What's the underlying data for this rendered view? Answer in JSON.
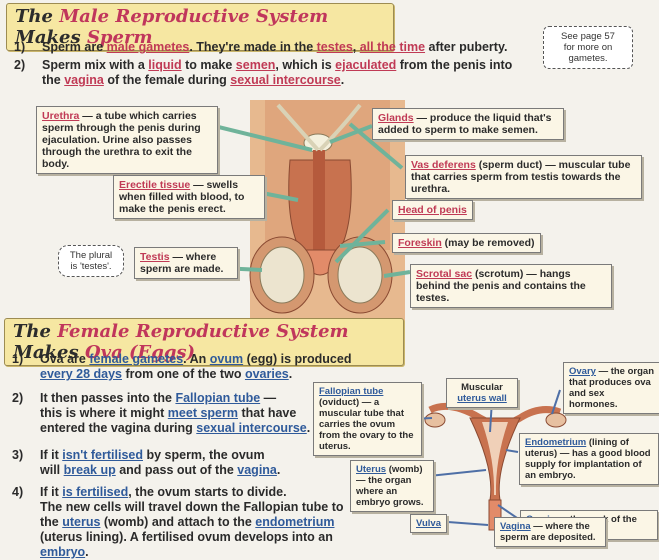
{
  "male": {
    "title_part1": "The",
    "title_part2": "Male Reproductive System",
    "title_part3": "Makes",
    "title_part4": "Sperm",
    "point1": {
      "num": "1)",
      "a": "Sperm are ",
      "b": "male gametes",
      "c": ".  They're made in the ",
      "d": "testes",
      "e": ", ",
      "f": "all the time",
      "g": " after puberty."
    },
    "point2": {
      "num": "2)",
      "a": "Sperm mix with a ",
      "b": "liquid",
      "c": " to make ",
      "d": "semen",
      "e": ", which is ",
      "f": "ejaculated",
      "g": " from the penis into",
      "h": "the ",
      "i": "vagina",
      "j": " of the female during ",
      "k": "sexual intercourse",
      "l": "."
    },
    "see_page": [
      "See page 57",
      "for more on",
      "gametes."
    ],
    "plural_note": [
      "The plural",
      "is 'testes'."
    ],
    "labels": {
      "urethra": {
        "key": "Urethra",
        "text": " — a tube which carries sperm through the penis during ejaculation. Urine also passes through the urethra to exit the body."
      },
      "erectile": {
        "key": "Erectile tissue",
        "text": " — swells when filled with blood, to make the penis erect."
      },
      "testis": {
        "key": "Testis",
        "text": " — where sperm are made."
      },
      "glands": {
        "key": "Glands",
        "text": " — produce the liquid that's added to sperm to make semen."
      },
      "vas": {
        "key": "Vas deferens",
        "text": " (sperm duct) — muscular tube that carries sperm from testis towards the urethra."
      },
      "head": {
        "key": "Head of penis",
        "text": ""
      },
      "foreskin": {
        "key": "Foreskin",
        "text": " (may be removed)"
      },
      "scrotal": {
        "key": "Scrotal sac",
        "text": " (scrotum) — hangs behind the penis and contains the testes."
      }
    }
  },
  "female": {
    "title_part1": "The",
    "title_part2": "Female Reproductive System",
    "title_part3": "Makes",
    "title_part4": "Ova (Eggs)",
    "points": [
      {
        "num": "1)",
        "lines": [
          [
            {
              "t": "Ova are "
            },
            {
              "t": "female gametes",
              "k": 1
            },
            {
              "t": ".  An "
            },
            {
              "t": "ovum",
              "k": 1
            },
            {
              "t": " (egg) is produced"
            }
          ],
          [
            {
              "t": "every 28 days",
              "k": 1
            },
            {
              "t": " from one of the two "
            },
            {
              "t": "ovaries",
              "k": 1
            },
            {
              "t": "."
            }
          ]
        ]
      },
      {
        "num": "2)",
        "lines": [
          [
            {
              "t": "It then passes into the "
            },
            {
              "t": "Fallopian tube",
              "k": 1
            },
            {
              "t": " —"
            }
          ],
          [
            {
              "t": "this is where it might "
            },
            {
              "t": "meet sperm",
              "k": 1
            },
            {
              "t": " that have"
            }
          ],
          [
            {
              "t": "entered the vagina during "
            },
            {
              "t": "sexual intercourse",
              "k": 1
            },
            {
              "t": "."
            }
          ]
        ]
      },
      {
        "num": "3)",
        "lines": [
          [
            {
              "t": "If it "
            },
            {
              "t": "isn't fertilised",
              "k": 1
            },
            {
              "t": " by sperm, the ovum"
            }
          ],
          [
            {
              "t": "will "
            },
            {
              "t": "break up",
              "k": 1
            },
            {
              "t": " and pass out of the "
            },
            {
              "t": "vagina",
              "k": 1
            },
            {
              "t": "."
            }
          ]
        ]
      },
      {
        "num": "4)",
        "lines": [
          [
            {
              "t": "If it "
            },
            {
              "t": "is fertilised",
              "k": 1
            },
            {
              "t": ", the ovum starts to divide."
            }
          ],
          [
            {
              "t": "The new cells will travel down the Fallopian tube to"
            }
          ],
          [
            {
              "t": "the "
            },
            {
              "t": "uterus",
              "k": 1
            },
            {
              "t": " (womb) and attach to the "
            },
            {
              "t": "endometrium",
              "k": 1
            }
          ],
          [
            {
              "t": "(uterus lining).  A fertilised ovum develops into an "
            },
            {
              "t": "embryo",
              "k": 1
            },
            {
              "t": "."
            }
          ]
        ]
      }
    ],
    "labels": {
      "fallopian": {
        "key": "Fallopian tube",
        "text": " (oviduct) — a muscular tube that carries the ovum from the ovary to the uterus."
      },
      "muscular": {
        "key": "uterus wall",
        "pre": "Muscular"
      },
      "ovary": {
        "key": "Ovary",
        "text": " — the organ that produces ova and sex hormones."
      },
      "endometrium": {
        "key": "Endometrium",
        "text": " (lining of uterus) — has a good blood supply for implantation of an embryo."
      },
      "uterus": {
        "key": "Uterus",
        "text": " (womb) — the organ where an embryo grows."
      },
      "cervix": {
        "key": "Cervix",
        "text": " — the neck of the uterus."
      },
      "vulva": {
        "key": "Vulva",
        "text": ""
      },
      "vagina": {
        "key": "Vagina",
        "text": " — where the sperm are deposited."
      }
    }
  },
  "colors": {
    "banner": "#f6e7a2",
    "accent_red": "#c03a55",
    "accent_blue": "#2f5a9a",
    "skin": "#e7b98f"
  }
}
